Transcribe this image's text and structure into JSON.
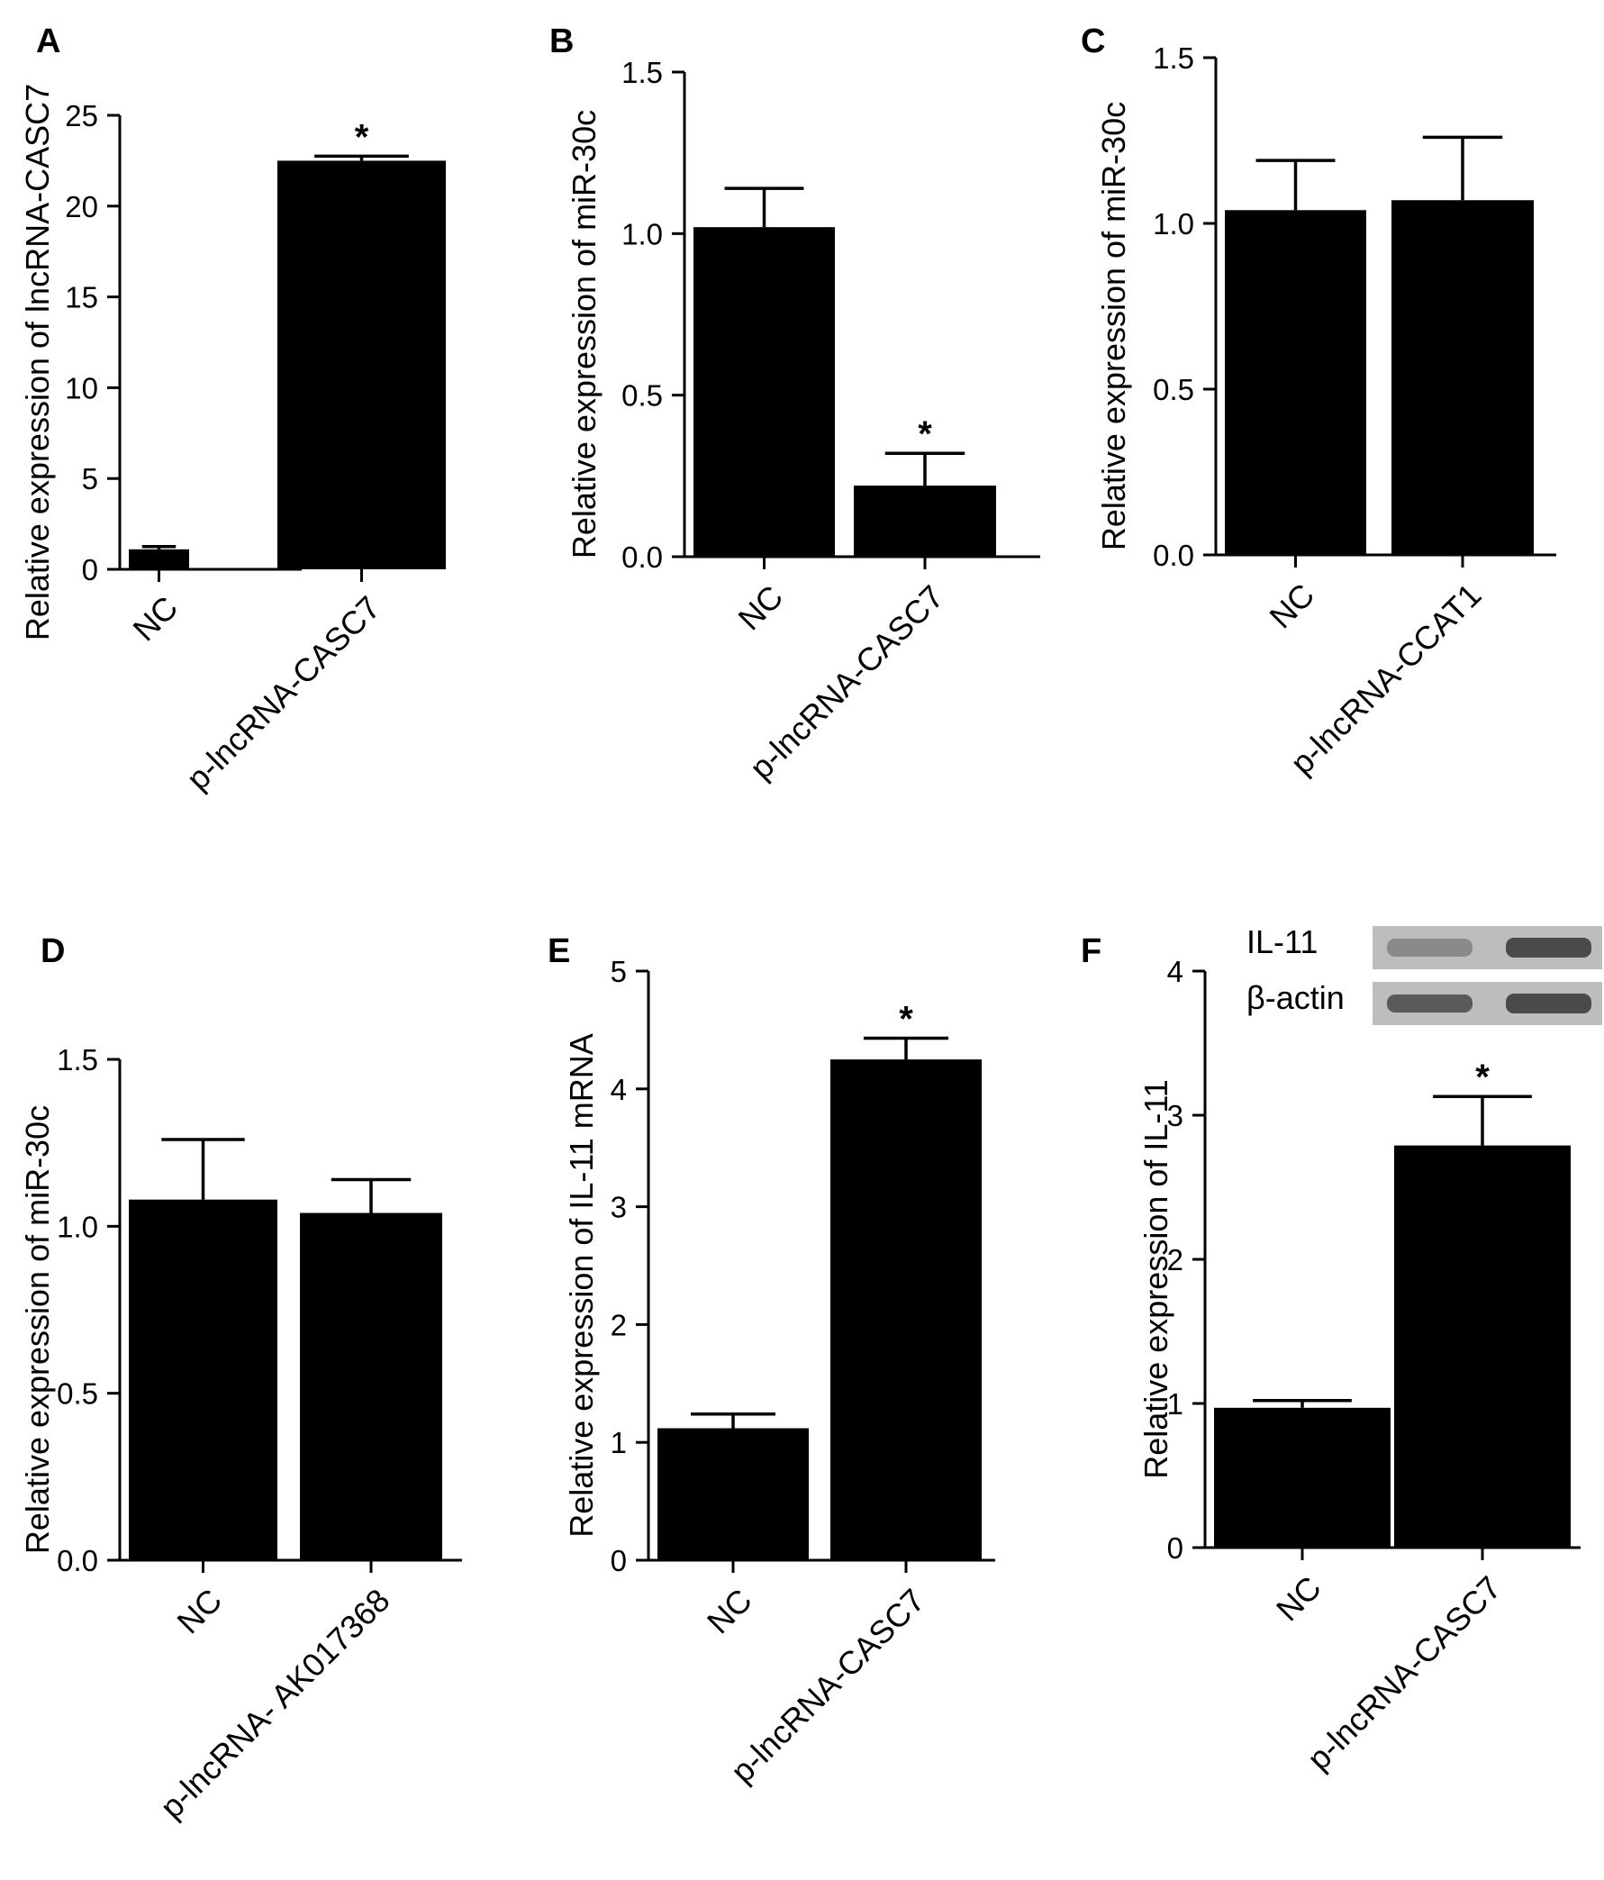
{
  "chart_data": [
    {
      "panel": "A",
      "type": "bar",
      "categories": [
        "NC",
        "p-lncRNA-CASC7"
      ],
      "values": [
        1.1,
        22.5
      ],
      "errors": [
        0.15,
        0.25
      ],
      "significance": [
        "",
        "*"
      ],
      "ylabel": "Relative expression of lncRNA-CASC7",
      "ylim": [
        0,
        25
      ],
      "yticks": [
        "0",
        "5",
        "10",
        "15",
        "20",
        "25"
      ],
      "colors": {
        "bar": "#000000"
      }
    },
    {
      "panel": "B",
      "type": "bar",
      "categories": [
        "NC",
        "p-lncRNA-CASC7"
      ],
      "values": [
        1.02,
        0.22
      ],
      "errors": [
        0.12,
        0.1
      ],
      "significance": [
        "",
        "*"
      ],
      "ylabel": "Relative expression of miR-30c",
      "ylim": [
        0,
        1.5
      ],
      "yticks": [
        "0.0",
        "0.5",
        "1.0",
        "1.5"
      ],
      "colors": {
        "bar": "#000000"
      }
    },
    {
      "panel": "C",
      "type": "bar",
      "categories": [
        "NC",
        "p-lncRNA-CCAT1"
      ],
      "values": [
        1.04,
        1.07
      ],
      "errors": [
        0.15,
        0.19
      ],
      "significance": [
        "",
        ""
      ],
      "ylabel": "Relative expression of miR-30c",
      "ylim": [
        0,
        1.5
      ],
      "yticks": [
        "0.0",
        "0.5",
        "1.0",
        "1.5"
      ],
      "colors": {
        "bar": "#000000"
      }
    },
    {
      "panel": "D",
      "type": "bar",
      "categories": [
        "NC",
        "p-lncRNA- AK017368"
      ],
      "values": [
        1.08,
        1.04
      ],
      "errors": [
        0.18,
        0.1
      ],
      "significance": [
        "",
        ""
      ],
      "ylabel": "Relative expression of miR-30c",
      "ylim": [
        0,
        1.5
      ],
      "yticks": [
        "0.0",
        "0.5",
        "1.0",
        "1.5"
      ],
      "colors": {
        "bar": "#000000"
      }
    },
    {
      "panel": "E",
      "type": "bar",
      "categories": [
        "NC",
        "p-lncRNA-CASC7"
      ],
      "values": [
        1.12,
        4.25
      ],
      "errors": [
        0.12,
        0.18
      ],
      "significance": [
        "",
        "*"
      ],
      "ylabel": "Relative expression of IL-11 mRNA",
      "ylim": [
        0,
        5
      ],
      "yticks": [
        "0",
        "1",
        "2",
        "3",
        "4",
        "5"
      ],
      "colors": {
        "bar": "#000000"
      }
    },
    {
      "panel": "F",
      "type": "bar",
      "categories": [
        "NC",
        "p-lncRNA-CASC7"
      ],
      "values": [
        0.97,
        2.79
      ],
      "errors": [
        0.05,
        0.34
      ],
      "significance": [
        "",
        "*"
      ],
      "ylabel": "Relative expression of IL-11",
      "ylim": [
        0,
        4
      ],
      "yticks": [
        "0",
        "1",
        "2",
        "3",
        "4"
      ],
      "colors": {
        "bar": "#000000"
      },
      "blot": {
        "labels": [
          "IL-11",
          "β-actin"
        ]
      }
    }
  ]
}
